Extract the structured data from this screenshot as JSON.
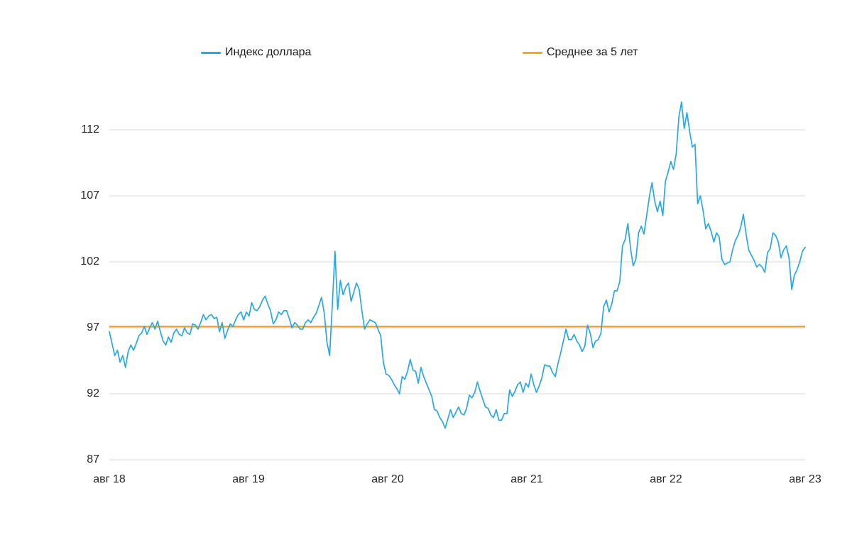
{
  "legend": {
    "series_label": "Индекс доллара",
    "average_label": "Среднее за 5 лет"
  },
  "colors": {
    "series": "#29a8e0",
    "average": "#eca72c",
    "grid": "#d9d9d9",
    "text": "#262626"
  },
  "chart_data": {
    "type": "line",
    "title": "",
    "xlabel": "",
    "ylabel": "",
    "grid": "horizontal",
    "legend_position": "top",
    "x_tick_labels": [
      "авг 18",
      "авг 19",
      "авг 20",
      "авг 21",
      "авг 22",
      "авг 23"
    ],
    "y_ticks": [
      112,
      107,
      102,
      97,
      92,
      87
    ],
    "ylim": [
      87,
      115.3
    ],
    "x_range_note": "weekly points, Aug 2018 - Aug 2023",
    "average_line": {
      "name": "Среднее за 5 лет",
      "value": 97.1
    },
    "series": [
      {
        "name": "Индекс доллара",
        "values": [
          96.7,
          95.8,
          94.9,
          95.3,
          94.4,
          94.9,
          94.0,
          95.2,
          95.7,
          95.3,
          95.8,
          96.4,
          96.6,
          97.1,
          96.5,
          97.0,
          97.4,
          96.9,
          97.5,
          96.7,
          96.0,
          95.7,
          96.3,
          95.9,
          96.6,
          96.9,
          96.5,
          96.4,
          97.0,
          96.6,
          96.5,
          97.3,
          97.2,
          96.9,
          97.4,
          98.0,
          97.6,
          97.9,
          98.0,
          97.7,
          97.8,
          96.7,
          97.4,
          96.2,
          96.8,
          97.3,
          97.1,
          97.6,
          98.0,
          98.2,
          97.6,
          98.2,
          97.9,
          98.9,
          98.4,
          98.3,
          98.6,
          99.1,
          99.4,
          98.8,
          98.3,
          97.3,
          97.6,
          98.2,
          98.0,
          98.3,
          98.3,
          97.7,
          97.0,
          97.4,
          97.2,
          96.9,
          96.9,
          97.4,
          97.6,
          97.4,
          97.8,
          98.1,
          98.7,
          99.3,
          98.1,
          95.9,
          94.9,
          98.8,
          102.8,
          98.4,
          100.6,
          99.5,
          100.1,
          100.4,
          99.0,
          99.7,
          100.4,
          99.9,
          98.3,
          96.9,
          97.3,
          97.6,
          97.5,
          97.4,
          96.9,
          96.4,
          94.4,
          93.5,
          93.4,
          93.1,
          92.7,
          92.4,
          92.0,
          93.3,
          93.1,
          93.7,
          94.6,
          93.8,
          93.7,
          92.8,
          94.0,
          93.3,
          92.8,
          92.3,
          91.8,
          90.8,
          90.7,
          90.2,
          89.9,
          89.4,
          90.1,
          90.8,
          90.2,
          90.6,
          91.0,
          90.5,
          90.4,
          90.9,
          91.9,
          91.7,
          92.1,
          92.9,
          92.2,
          91.6,
          91.0,
          90.9,
          90.4,
          90.2,
          90.8,
          90.0,
          90.0,
          90.5,
          90.5,
          92.3,
          91.8,
          92.2,
          92.7,
          92.9,
          92.1,
          92.8,
          92.5,
          93.5,
          92.7,
          92.1,
          92.6,
          93.2,
          94.2,
          94.1,
          94.1,
          93.6,
          93.3,
          94.3,
          95.1,
          96.0,
          96.9,
          96.1,
          96.1,
          96.5,
          96.0,
          95.7,
          95.2,
          95.6,
          97.2,
          96.6,
          95.5,
          96.0,
          96.1,
          96.6,
          98.6,
          99.1,
          98.2,
          98.8,
          99.8,
          99.8,
          100.5,
          103.2,
          103.7,
          104.9,
          103.0,
          101.7,
          102.2,
          104.2,
          104.7,
          104.1,
          105.5,
          106.9,
          108.0,
          106.6,
          105.8,
          106.6,
          105.5,
          108.1,
          108.8,
          109.6,
          109.0,
          110.2,
          113.0,
          114.1,
          112.1,
          113.3,
          111.9,
          110.7,
          110.9,
          106.4,
          107.0,
          105.9,
          104.5,
          104.9,
          104.3,
          103.5,
          104.2,
          103.9,
          102.2,
          101.8,
          101.9,
          102.0,
          102.9,
          103.6,
          104.0,
          104.6,
          105.6,
          104.1,
          102.9,
          102.5,
          102.1,
          101.6,
          101.8,
          101.6,
          101.2,
          102.7,
          103.0,
          104.2,
          104.0,
          103.5,
          102.3,
          102.9,
          103.2,
          102.3,
          99.9,
          101.0,
          101.4,
          102.0,
          102.8,
          103.1
        ]
      }
    ]
  }
}
